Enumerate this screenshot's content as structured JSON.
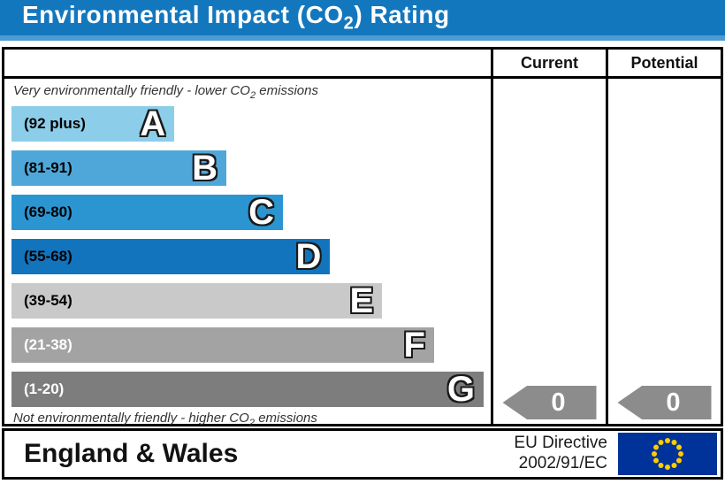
{
  "title": {
    "pre": "Environmental Impact (CO",
    "sub": "2",
    "post": ") Rating"
  },
  "table": {
    "col_current": "Current",
    "col_potential": "Potential",
    "top_note": {
      "pre": "Very environmentally friendly - lower CO",
      "sub": "2",
      "post": " emissions"
    },
    "bottom_note": {
      "pre": "Not environmentally friendly - higher CO",
      "sub": "2",
      "post": " emissions"
    }
  },
  "chart_data": {
    "type": "bar",
    "title": "Environmental Impact (CO2) Rating",
    "categories": [
      "A",
      "B",
      "C",
      "D",
      "E",
      "F",
      "G"
    ],
    "bands": [
      {
        "letter": "A",
        "range_label": "(92 plus)",
        "range_min": 92,
        "range_max": 100,
        "color": "#8ccde9",
        "label_color": "#000000",
        "width_pct": 34.5
      },
      {
        "letter": "B",
        "range_label": "(81-91)",
        "range_min": 81,
        "range_max": 91,
        "color": "#4fa7d9",
        "label_color": "#000000",
        "width_pct": 45.5
      },
      {
        "letter": "C",
        "range_label": "(69-80)",
        "range_min": 69,
        "range_max": 80,
        "color": "#2b95d2",
        "label_color": "#000000",
        "width_pct": 57.5
      },
      {
        "letter": "D",
        "range_label": "(55-68)",
        "range_min": 55,
        "range_max": 68,
        "color": "#1274bc",
        "label_color": "#000000",
        "width_pct": 67.5
      },
      {
        "letter": "E",
        "range_label": "(39-54)",
        "range_min": 39,
        "range_max": 54,
        "color": "#c9c9c9",
        "label_color": "#000000",
        "width_pct": 78.5
      },
      {
        "letter": "F",
        "range_label": "(21-38)",
        "range_min": 21,
        "range_max": 38,
        "color": "#a3a3a3",
        "label_color": "#ffffff",
        "width_pct": 89.5
      },
      {
        "letter": "G",
        "range_label": "(1-20)",
        "range_min": 1,
        "range_max": 20,
        "color": "#7d7d7d",
        "label_color": "#ffffff",
        "width_pct": 100
      }
    ],
    "current_value": 0,
    "potential_value": 0,
    "legend_position": "none",
    "grid": false
  },
  "colors": {
    "title_bar": "#1377bd",
    "title_bar_edge": "#4f9bd1",
    "arrow": "#8c8c8c",
    "border": "#000000"
  },
  "footer": {
    "region": "England & Wales",
    "directive_line1": "EU Directive",
    "directive_line2": "2002/91/EC",
    "flag": {
      "bg": "#003399",
      "star": "#ffcc00",
      "star_count": 12
    }
  }
}
